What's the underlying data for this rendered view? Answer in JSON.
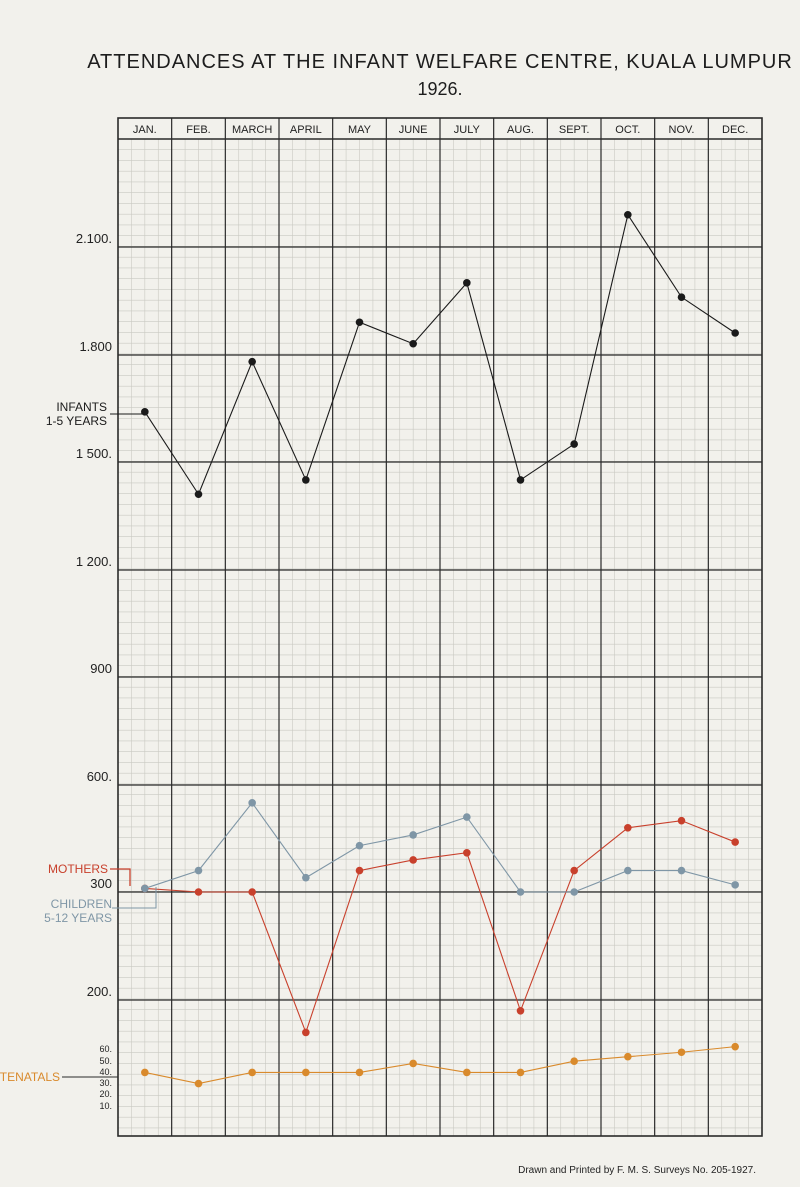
{
  "chart_data": {
    "type": "line",
    "title": "ATTENDANCES AT THE INFANT WELFARE CENTRE, KUALA LUMPUR",
    "subtitle": "1926.",
    "categories": [
      "JAN.",
      "FEB.",
      "MARCH",
      "APRIL",
      "MAY",
      "JUNE",
      "JULY",
      "AUG.",
      "SEPT.",
      "OCT.",
      "NOV.",
      "DEC."
    ],
    "y_tick_labels": [
      "2.100.",
      "1.800",
      "1 500.",
      "1 200.",
      "900",
      "600.",
      "300",
      "200."
    ],
    "antenatal_tick_labels": [
      "60.",
      "50.",
      "40.",
      "30.",
      "20.",
      "10."
    ],
    "series": [
      {
        "name": "INFANTS 1-5 YEARS",
        "color": "#1a1a1a",
        "values": [
          1640,
          1410,
          1780,
          1450,
          1890,
          1830,
          2000,
          1450,
          1550,
          2190,
          1960,
          1860
        ]
      },
      {
        "name": "MOTHERS",
        "color": "#c8402c",
        "values": [
          310,
          300,
          300,
          170,
          360,
          390,
          410,
          190,
          360,
          480,
          500,
          440
        ]
      },
      {
        "name": "CHILDREN 5-12 YEARS",
        "color": "#7f96a6",
        "values": [
          310,
          360,
          550,
          340,
          430,
          460,
          510,
          300,
          300,
          360,
          360,
          320
        ]
      },
      {
        "name": "ANTENATALS",
        "color": "#d98a2c",
        "values": [
          40,
          30,
          40,
          40,
          40,
          48,
          40,
          40,
          50,
          54,
          58,
          63
        ]
      }
    ],
    "grid": true,
    "credit": "Drawn and Printed by F. M. S. Surveys No. 205-1927."
  }
}
